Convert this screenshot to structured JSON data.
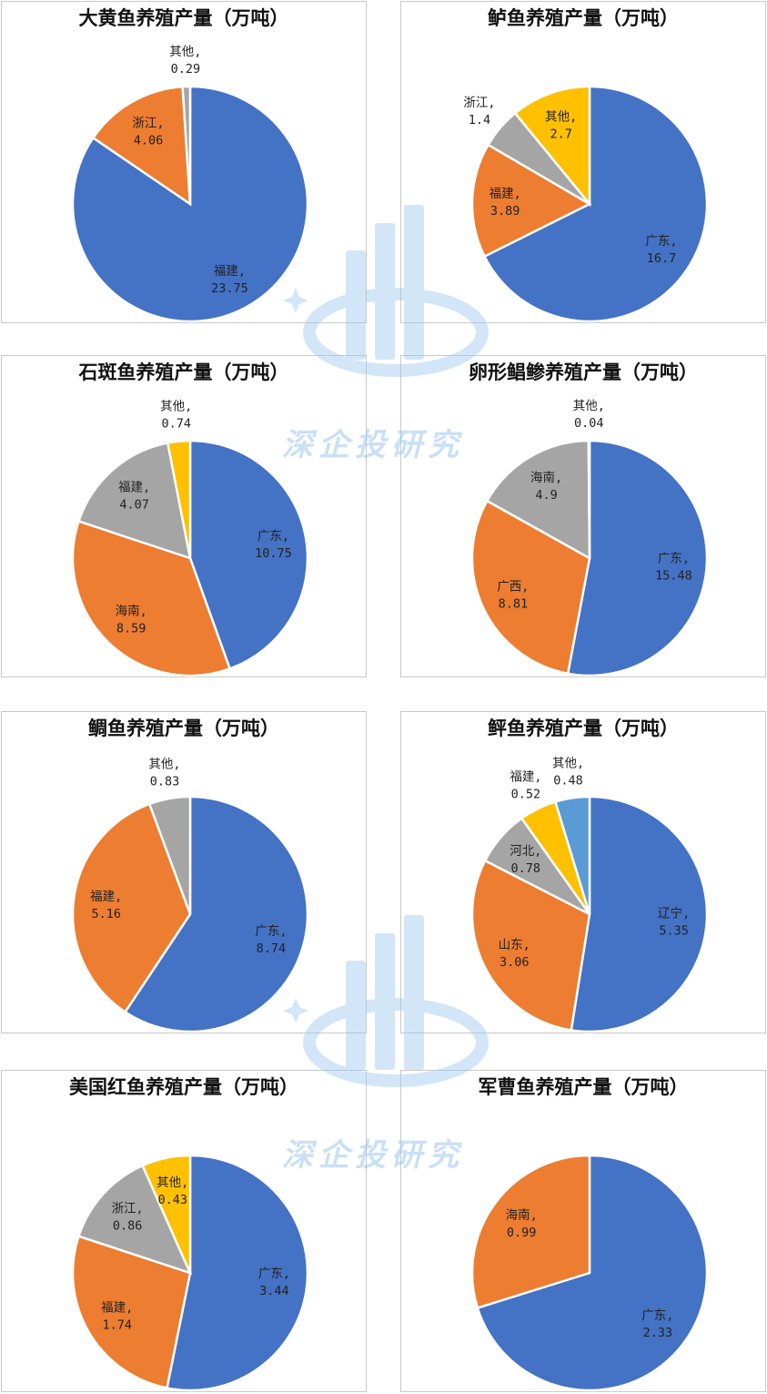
{
  "chart_data": [
    {
      "type": "pie",
      "title": "大黄鱼养殖产量（万吨）",
      "slices": [
        {
          "name": "福建",
          "value": 23.75,
          "label": "23.75",
          "color": "#4472c4"
        },
        {
          "name": "浙江",
          "value": 4.06,
          "label": "4.06",
          "color": "#ed7d31"
        },
        {
          "name": "其他",
          "value": 0.29,
          "label": "0.29",
          "color": "#a5a5a5"
        }
      ]
    },
    {
      "type": "pie",
      "title": "鲈鱼养殖产量（万吨）",
      "slices": [
        {
          "name": "广东",
          "value": 16.7,
          "label": "16.7",
          "color": "#4472c4"
        },
        {
          "name": "福建",
          "value": 3.89,
          "label": "3.89",
          "color": "#ed7d31"
        },
        {
          "name": "浙江",
          "value": 1.4,
          "label": "1.4",
          "color": "#a5a5a5"
        },
        {
          "name": "其他",
          "value": 2.7,
          "label": "2.7",
          "color": "#ffc000"
        }
      ]
    },
    {
      "type": "pie",
      "title": "石斑鱼养殖产量（万吨）",
      "slices": [
        {
          "name": "广东",
          "value": 10.75,
          "label": "10.75",
          "color": "#4472c4"
        },
        {
          "name": "海南",
          "value": 8.59,
          "label": "8.59",
          "color": "#ed7d31"
        },
        {
          "name": "福建",
          "value": 4.07,
          "label": "4.07",
          "color": "#a5a5a5"
        },
        {
          "name": "其他",
          "value": 0.74,
          "label": "0.74",
          "color": "#ffc000"
        }
      ]
    },
    {
      "type": "pie",
      "title": "卵形鲳鲹养殖产量（万吨）",
      "slices": [
        {
          "name": "广东",
          "value": 15.48,
          "label": "15.48",
          "color": "#4472c4"
        },
        {
          "name": "广西",
          "value": 8.81,
          "label": "8.81",
          "color": "#ed7d31"
        },
        {
          "name": "海南",
          "value": 4.9,
          "label": "4.9",
          "color": "#a5a5a5"
        },
        {
          "name": "其他",
          "value": 0.04,
          "label": "0.04",
          "color": "#ffc000"
        }
      ]
    },
    {
      "type": "pie",
      "title": "鲷鱼养殖产量（万吨）",
      "slices": [
        {
          "name": "广东",
          "value": 8.74,
          "label": "8.74",
          "color": "#4472c4"
        },
        {
          "name": "福建",
          "value": 5.16,
          "label": "5.16",
          "color": "#ed7d31"
        },
        {
          "name": "其他",
          "value": 0.83,
          "label": "0.83",
          "color": "#a5a5a5"
        }
      ]
    },
    {
      "type": "pie",
      "title": "鲆鱼养殖产量（万吨）",
      "slices": [
        {
          "name": "辽宁",
          "value": 5.35,
          "label": "5.35",
          "color": "#4472c4"
        },
        {
          "name": "山东",
          "value": 3.06,
          "label": "3.06",
          "color": "#ed7d31"
        },
        {
          "name": "河北",
          "value": 0.78,
          "label": "0.78",
          "color": "#a5a5a5"
        },
        {
          "name": "福建",
          "value": 0.52,
          "label": "0.52",
          "color": "#ffc000"
        },
        {
          "name": "其他",
          "value": 0.48,
          "label": "0.48",
          "color": "#5b9bd5"
        }
      ]
    },
    {
      "type": "pie",
      "title": "美国红鱼养殖产量（万吨）",
      "slices": [
        {
          "name": "广东",
          "value": 3.44,
          "label": "3.44",
          "color": "#4472c4"
        },
        {
          "name": "福建",
          "value": 1.74,
          "label": "1.74",
          "color": "#ed7d31"
        },
        {
          "name": "浙江",
          "value": 0.86,
          "label": "0.86",
          "color": "#a5a5a5"
        },
        {
          "name": "其他",
          "value": 0.43,
          "label": "0.43",
          "color": "#ffc000"
        }
      ]
    },
    {
      "type": "pie",
      "title": "军曹鱼养殖产量（万吨）",
      "slices": [
        {
          "name": "广东",
          "value": 2.33,
          "label": "2.33",
          "color": "#4472c4"
        },
        {
          "name": "海南",
          "value": 0.99,
          "label": "0.99",
          "color": "#ed7d31"
        }
      ]
    }
  ],
  "watermark": {
    "text": "深企投研究",
    "color": "#9ec8f0"
  }
}
